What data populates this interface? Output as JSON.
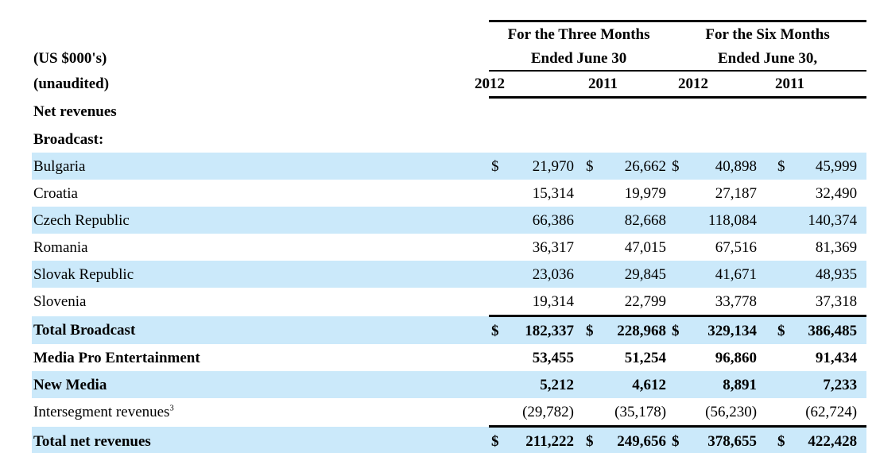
{
  "colors": {
    "stripe": "#cbe9fa",
    "rule": "#000000",
    "text": "#000000",
    "background": "#ffffff"
  },
  "table": {
    "currency_note": "(US $000's)",
    "audit_note": "(unaudited)",
    "currency_symbol": "$",
    "header": {
      "groups": [
        {
          "line1": "For the Three Months",
          "line2": "Ended June 30"
        },
        {
          "line1": "For the Six Months",
          "line2": "Ended June 30,"
        }
      ],
      "years": [
        "2012",
        "2011",
        "2012",
        "2011"
      ]
    },
    "rows": [
      {
        "label": "Net revenues",
        "section": true,
        "bold": true
      },
      {
        "label": "Broadcast:",
        "section": true,
        "bold": true
      },
      {
        "label": "Bulgaria",
        "striped": true,
        "dollar": true,
        "values": [
          "21,970",
          "26,662",
          "40,898",
          "45,999"
        ]
      },
      {
        "label": "Croatia",
        "values": [
          "15,314",
          "19,979",
          "27,187",
          "32,490"
        ]
      },
      {
        "label": "Czech Republic",
        "striped": true,
        "values": [
          "66,386",
          "82,668",
          "118,084",
          "140,374"
        ]
      },
      {
        "label": "Romania",
        "values": [
          "36,317",
          "47,015",
          "67,516",
          "81,369"
        ]
      },
      {
        "label": "Slovak Republic",
        "striped": true,
        "values": [
          "23,036",
          "29,845",
          "41,671",
          "48,935"
        ]
      },
      {
        "label": "Slovenia",
        "values": [
          "19,314",
          "22,799",
          "33,778",
          "37,318"
        ]
      },
      {
        "label": "Total Broadcast",
        "striped": true,
        "bold": true,
        "dollar": true,
        "rule_above": true,
        "values": [
          "182,337",
          "228,968",
          "329,134",
          "386,485"
        ]
      },
      {
        "label": "Media Pro Entertainment",
        "bold": true,
        "values": [
          "53,455",
          "51,254",
          "96,860",
          "91,434"
        ]
      },
      {
        "label": "New Media",
        "striped": true,
        "bold": true,
        "values": [
          "5,212",
          "4,612",
          "8,891",
          "7,233"
        ]
      },
      {
        "label": "Intersegment revenues",
        "label_sup": "3",
        "values": [
          "(29,782)",
          "(35,178)",
          "(56,230)",
          "(62,724)"
        ]
      },
      {
        "label": "Total net revenues",
        "striped": true,
        "bold": true,
        "dollar": true,
        "rule_above": true,
        "rule_below": true,
        "values": [
          "211,222",
          "249,656",
          "378,655",
          "422,428"
        ]
      }
    ]
  }
}
